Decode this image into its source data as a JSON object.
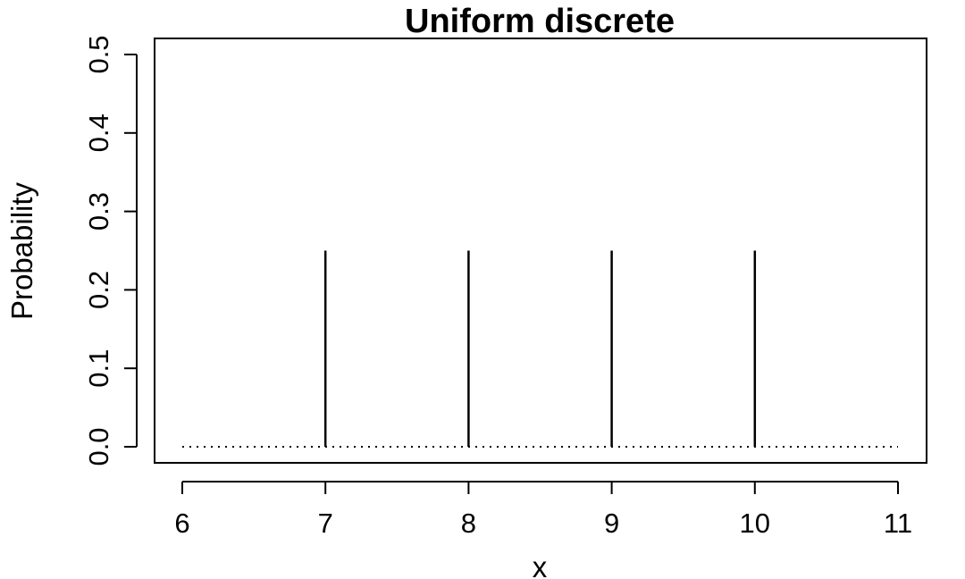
{
  "chart_data": {
    "type": "bar",
    "title": "Uniform discrete",
    "xlabel": "x",
    "ylabel": "Probability",
    "x": [
      7,
      8,
      9,
      10
    ],
    "values": [
      0.25,
      0.25,
      0.25,
      0.25
    ],
    "xlim": [
      6,
      11
    ],
    "ylim": [
      0,
      0.5
    ],
    "xticks": [
      "6",
      "7",
      "8",
      "9",
      "10",
      "11"
    ],
    "yticks": [
      "0.0",
      "0.1",
      "0.2",
      "0.3",
      "0.4",
      "0.5"
    ],
    "baseline": {
      "y": 0,
      "x_from": 6,
      "x_to": 11,
      "style": "dotted"
    },
    "grid": false,
    "colors": {
      "line": "#000000",
      "background": "#ffffff"
    }
  }
}
